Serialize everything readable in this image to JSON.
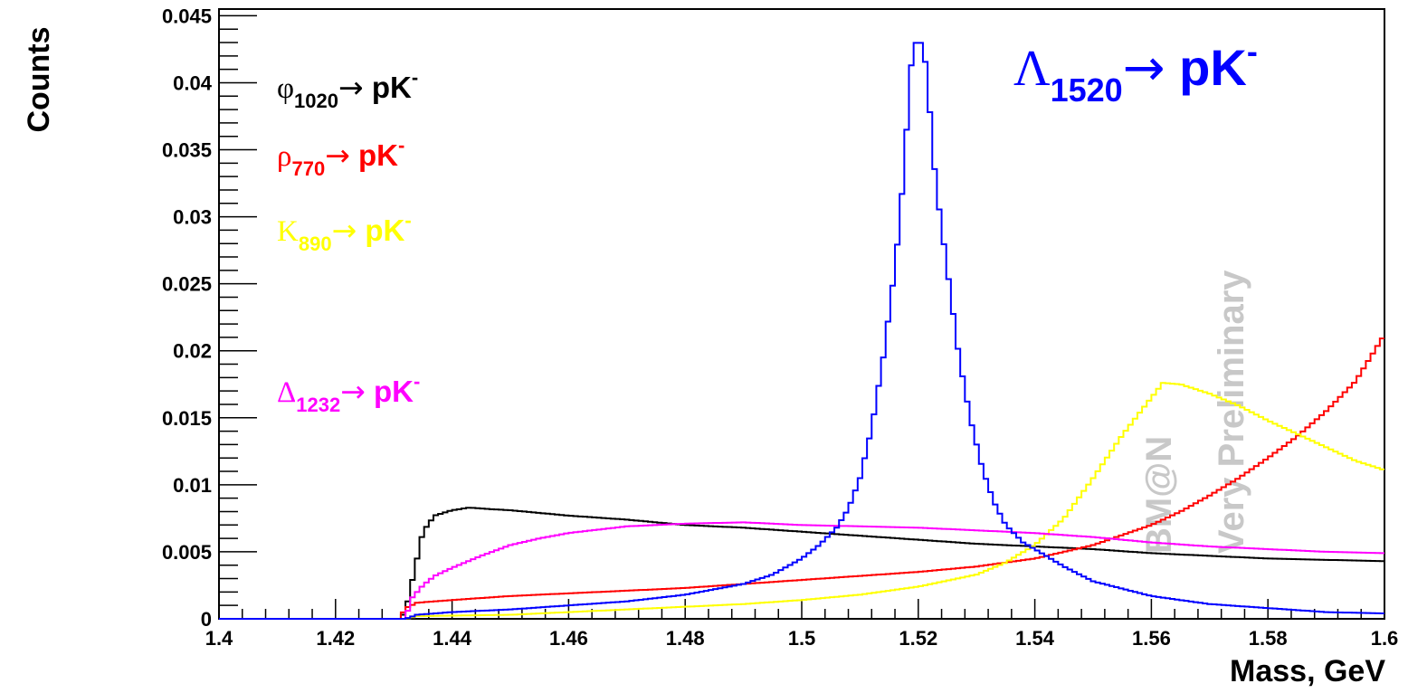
{
  "chart_data": {
    "type": "line",
    "style": "step-histogram",
    "xlabel": "Mass, GeV",
    "ylabel": "Counts",
    "xlim": [
      1.4,
      1.6
    ],
    "ylim": [
      0,
      0.0455
    ],
    "xticks": [
      "1.4",
      "1.42",
      "1.44",
      "1.46",
      "1.48",
      "1.5",
      "1.52",
      "1.54",
      "1.56",
      "1.58",
      "1.6"
    ],
    "yticks": [
      "0",
      "0.005",
      "0.01",
      "0.015",
      "0.02",
      "0.025",
      "0.03",
      "0.035",
      "0.04",
      "0.045"
    ],
    "grid": false,
    "watermark": [
      "BM@N",
      "Very Preliminary"
    ],
    "series": [
      {
        "name": "φ1020→ pK-",
        "color": "#000000",
        "points": [
          [
            1.4,
            0
          ],
          [
            1.431,
            0
          ],
          [
            1.432,
            0.0005
          ],
          [
            1.433,
            0.0025
          ],
          [
            1.434,
            0.0045
          ],
          [
            1.435,
            0.0065
          ],
          [
            1.437,
            0.0077
          ],
          [
            1.44,
            0.0081
          ],
          [
            1.443,
            0.0083
          ],
          [
            1.446,
            0.0082
          ],
          [
            1.45,
            0.0081
          ],
          [
            1.46,
            0.0077
          ],
          [
            1.47,
            0.0074
          ],
          [
            1.48,
            0.007
          ],
          [
            1.49,
            0.0068
          ],
          [
            1.5,
            0.0065
          ],
          [
            1.51,
            0.0062
          ],
          [
            1.52,
            0.0059
          ],
          [
            1.53,
            0.0056
          ],
          [
            1.54,
            0.0054
          ],
          [
            1.55,
            0.0052
          ],
          [
            1.56,
            0.0049
          ],
          [
            1.57,
            0.0047
          ],
          [
            1.58,
            0.0045
          ],
          [
            1.59,
            0.0044
          ],
          [
            1.6,
            0.0043
          ]
        ]
      },
      {
        "name": "ρ770→ pK-",
        "color": "#ff0000",
        "points": [
          [
            1.4,
            0
          ],
          [
            1.431,
            0
          ],
          [
            1.432,
            0.0008
          ],
          [
            1.434,
            0.0012
          ],
          [
            1.44,
            0.0014
          ],
          [
            1.45,
            0.0017
          ],
          [
            1.46,
            0.0019
          ],
          [
            1.47,
            0.0021
          ],
          [
            1.48,
            0.0023
          ],
          [
            1.49,
            0.0026
          ],
          [
            1.5,
            0.0029
          ],
          [
            1.51,
            0.0032
          ],
          [
            1.52,
            0.0035
          ],
          [
            1.53,
            0.0039
          ],
          [
            1.54,
            0.0045
          ],
          [
            1.55,
            0.0055
          ],
          [
            1.56,
            0.007
          ],
          [
            1.565,
            0.008
          ],
          [
            1.57,
            0.0092
          ],
          [
            1.575,
            0.0105
          ],
          [
            1.58,
            0.012
          ],
          [
            1.585,
            0.0136
          ],
          [
            1.59,
            0.0155
          ],
          [
            1.595,
            0.0177
          ],
          [
            1.6,
            0.0212
          ]
        ]
      },
      {
        "name": "K890→ pK-",
        "color": "#ffff00",
        "points": [
          [
            1.4,
            0
          ],
          [
            1.432,
            0
          ],
          [
            1.434,
            0.0002
          ],
          [
            1.45,
            0.0003
          ],
          [
            1.46,
            0.0005
          ],
          [
            1.47,
            0.0007
          ],
          [
            1.48,
            0.0009
          ],
          [
            1.49,
            0.0011
          ],
          [
            1.5,
            0.0014
          ],
          [
            1.51,
            0.0018
          ],
          [
            1.52,
            0.0024
          ],
          [
            1.53,
            0.0033
          ],
          [
            1.535,
            0.0042
          ],
          [
            1.54,
            0.0055
          ],
          [
            1.545,
            0.0075
          ],
          [
            1.55,
            0.0105
          ],
          [
            1.555,
            0.0137
          ],
          [
            1.56,
            0.0165
          ],
          [
            1.562,
            0.0176
          ],
          [
            1.565,
            0.0175
          ],
          [
            1.57,
            0.0168
          ],
          [
            1.575,
            0.0159
          ],
          [
            1.58,
            0.0148
          ],
          [
            1.585,
            0.0138
          ],
          [
            1.59,
            0.0128
          ],
          [
            1.595,
            0.0118
          ],
          [
            1.6,
            0.0111
          ]
        ]
      },
      {
        "name": "Δ1232→ pK-",
        "color": "#ff00ff",
        "points": [
          [
            1.4,
            0
          ],
          [
            1.432,
            0
          ],
          [
            1.433,
            0.0015
          ],
          [
            1.435,
            0.0025
          ],
          [
            1.437,
            0.0032
          ],
          [
            1.44,
            0.0038
          ],
          [
            1.445,
            0.0047
          ],
          [
            1.45,
            0.0055
          ],
          [
            1.455,
            0.006
          ],
          [
            1.46,
            0.0064
          ],
          [
            1.47,
            0.0069
          ],
          [
            1.48,
            0.0071
          ],
          [
            1.49,
            0.0072
          ],
          [
            1.5,
            0.007
          ],
          [
            1.51,
            0.0069
          ],
          [
            1.52,
            0.0068
          ],
          [
            1.53,
            0.0066
          ],
          [
            1.54,
            0.0064
          ],
          [
            1.55,
            0.0061
          ],
          [
            1.56,
            0.0057
          ],
          [
            1.57,
            0.0054
          ],
          [
            1.58,
            0.0052
          ],
          [
            1.59,
            0.005
          ],
          [
            1.6,
            0.0049
          ]
        ]
      },
      {
        "name": "Λ1520→ pK-",
        "color": "#0000ff",
        "points": [
          [
            1.4,
            0
          ],
          [
            1.432,
            0
          ],
          [
            1.434,
            0.0003
          ],
          [
            1.44,
            0.0005
          ],
          [
            1.45,
            0.0007
          ],
          [
            1.46,
            0.001
          ],
          [
            1.47,
            0.0013
          ],
          [
            1.48,
            0.0018
          ],
          [
            1.49,
            0.0026
          ],
          [
            1.495,
            0.0033
          ],
          [
            1.5,
            0.0045
          ],
          [
            1.503,
            0.0055
          ],
          [
            1.506,
            0.0068
          ],
          [
            1.508,
            0.0082
          ],
          [
            1.51,
            0.0105
          ],
          [
            1.512,
            0.0142
          ],
          [
            1.514,
            0.0195
          ],
          [
            1.516,
            0.0262
          ],
          [
            1.517,
            0.0305
          ],
          [
            1.518,
            0.0365
          ],
          [
            1.519,
            0.0425
          ],
          [
            1.52,
            0.0433
          ],
          [
            1.521,
            0.0425
          ],
          [
            1.522,
            0.0378
          ],
          [
            1.523,
            0.0325
          ],
          [
            1.525,
            0.026
          ],
          [
            1.527,
            0.0195
          ],
          [
            1.529,
            0.0148
          ],
          [
            1.531,
            0.0112
          ],
          [
            1.533,
            0.0087
          ],
          [
            1.535,
            0.007
          ],
          [
            1.538,
            0.0057
          ],
          [
            1.54,
            0.0052
          ],
          [
            1.545,
            0.0039
          ],
          [
            1.55,
            0.0028
          ],
          [
            1.56,
            0.0017
          ],
          [
            1.57,
            0.0011
          ],
          [
            1.58,
            0.0008
          ],
          [
            1.59,
            0.0005
          ],
          [
            1.6,
            0.0004
          ]
        ]
      }
    ],
    "legend": [
      {
        "sym": "φ",
        "sub": "1020",
        "arrow": "→",
        "text": " pK",
        "sup": "-",
        "color": "#000000"
      },
      {
        "sym": "ρ",
        "sub": "770",
        "arrow": "→",
        "text": " pK",
        "sup": "-",
        "color": "#ff0000"
      },
      {
        "sym": "K",
        "sub": "890",
        "arrow": "→",
        "text": " pK",
        "sup": "-",
        "color": "#ffff00"
      },
      {
        "sym": "Δ",
        "sub": "1232",
        "arrow": "→",
        "text": " pK",
        "sup": "-",
        "color": "#ff00ff"
      },
      {
        "sym": "Λ",
        "sub": "1520",
        "arrow": "→",
        "text": " pK",
        "sup": "-",
        "color": "#0000ff"
      }
    ]
  }
}
